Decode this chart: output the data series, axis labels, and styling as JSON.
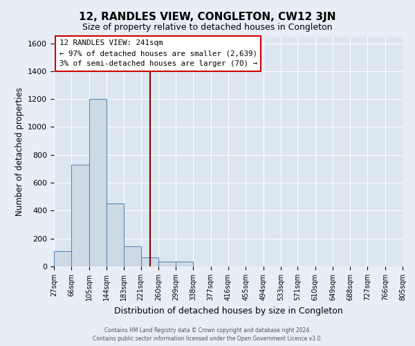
{
  "title": "12, RANDLES VIEW, CONGLETON, CW12 3JN",
  "subtitle": "Size of property relative to detached houses in Congleton",
  "xlabel": "Distribution of detached houses by size in Congleton",
  "ylabel": "Number of detached properties",
  "bin_edges": [
    27,
    66,
    105,
    144,
    183,
    221,
    260,
    299,
    338,
    377,
    416,
    455,
    494,
    533,
    571,
    610,
    649,
    688,
    727,
    766,
    805
  ],
  "bar_heights": [
    110,
    730,
    1200,
    450,
    145,
    65,
    35,
    35,
    0,
    0,
    0,
    0,
    0,
    0,
    0,
    0,
    0,
    0,
    0,
    0
  ],
  "bar_color": "#cdd9e5",
  "bar_edge_color": "#4f7fb5",
  "property_size": 241,
  "vline_color": "#8b0000",
  "ylim": [
    0,
    1650
  ],
  "yticks": [
    0,
    200,
    400,
    600,
    800,
    1000,
    1200,
    1400,
    1600
  ],
  "annotation_title": "12 RANDLES VIEW: 241sqm",
  "annotation_line1": "← 97% of detached houses are smaller (2,639)",
  "annotation_line2": "3% of semi-detached houses are larger (70) →",
  "annotation_box_color": "#ffffff",
  "annotation_border_color": "#cc0000",
  "background_color": "#e8eef5",
  "plot_background": "#dce6f0",
  "footer1": "Contains HM Land Registry data © Crown copyright and database right 2024.",
  "footer2": "Contains public sector information licensed under the Open Government Licence v3.0."
}
